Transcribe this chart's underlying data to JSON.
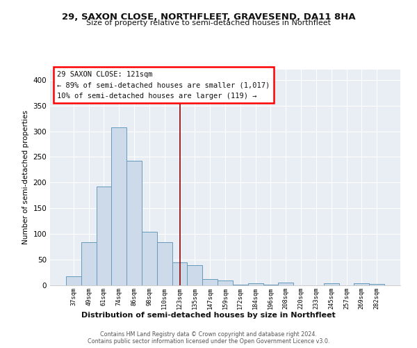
{
  "title": "29, SAXON CLOSE, NORTHFLEET, GRAVESEND, DA11 8HA",
  "subtitle": "Size of property relative to semi-detached houses in Northfleet",
  "xlabel": "Distribution of semi-detached houses by size in Northfleet",
  "ylabel": "Number of semi-detached properties",
  "bin_labels": [
    "37sqm",
    "49sqm",
    "61sqm",
    "74sqm",
    "86sqm",
    "98sqm",
    "110sqm",
    "123sqm",
    "135sqm",
    "147sqm",
    "159sqm",
    "172sqm",
    "184sqm",
    "196sqm",
    "208sqm",
    "220sqm",
    "233sqm",
    "245sqm",
    "257sqm",
    "269sqm",
    "282sqm"
  ],
  "bar_heights": [
    18,
    84,
    193,
    307,
    243,
    104,
    84,
    45,
    39,
    12,
    10,
    1,
    4,
    2,
    5,
    0,
    0,
    4,
    0,
    4,
    3
  ],
  "bar_color": "#ccdaea",
  "bar_edge_color": "#6699bb",
  "vline_x": 7,
  "annotation_title": "29 SAXON CLOSE: 121sqm",
  "annotation_line1": "← 89% of semi-detached houses are smaller (1,017)",
  "annotation_line2": "10% of semi-detached houses are larger (119) →",
  "ylim": [
    0,
    420
  ],
  "yticks": [
    0,
    50,
    100,
    150,
    200,
    250,
    300,
    350,
    400
  ],
  "background_color": "#e8eef4",
  "grid_color": "#ffffff",
  "footer_line1": "Contains HM Land Registry data © Crown copyright and database right 2024.",
  "footer_line2": "Contains public sector information licensed under the Open Government Licence v3.0."
}
